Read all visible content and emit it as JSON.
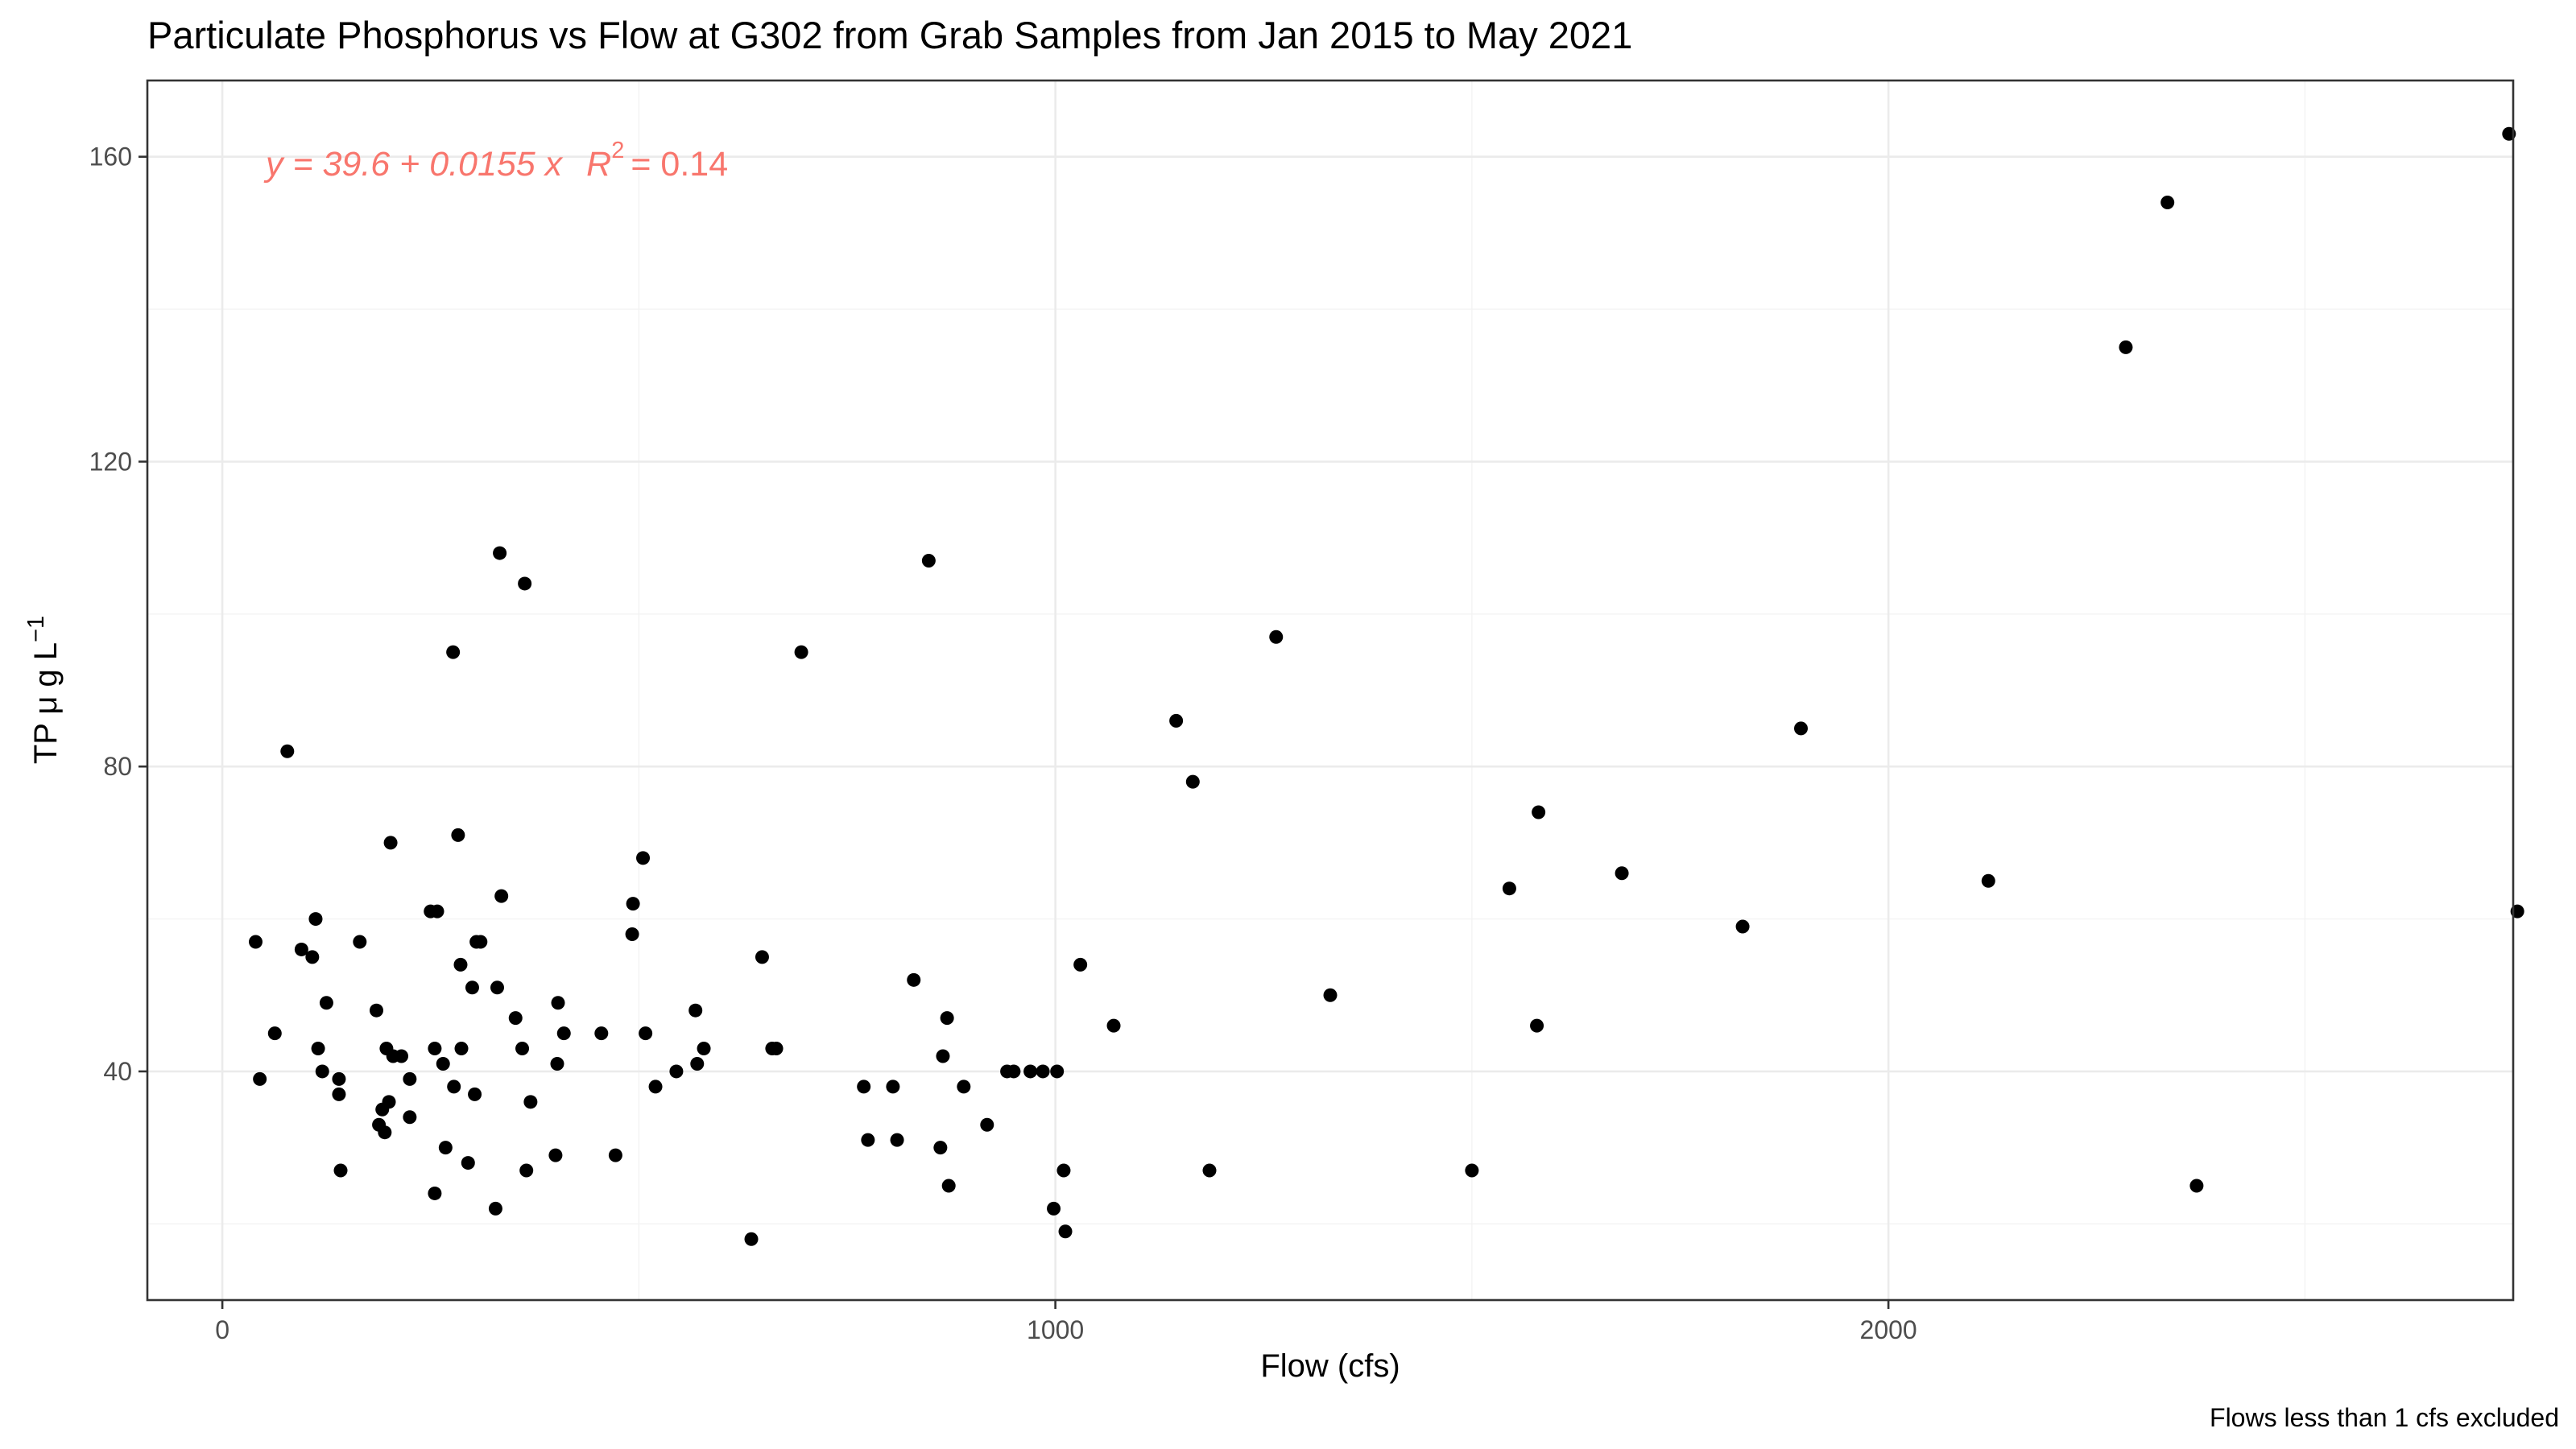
{
  "chart_data": {
    "type": "scatter",
    "title": "Particulate Phosphorus vs Flow at G302 from Grab Samples from Jan 2015 to May 2021",
    "xlabel": "Flow (cfs)",
    "ylabel": {
      "base": "TP μ g L",
      "sup": "−1"
    },
    "caption": "Flows less than 1 cfs excluded",
    "annotation": {
      "equation": "y = 39.6 + 0.0155 x",
      "r2_label": "R",
      "r2_sup": "2",
      "r2_value": "= 0.14",
      "color": "#F8766D"
    },
    "xlim": [
      -90,
      2750
    ],
    "ylim": [
      10,
      170
    ],
    "x_ticks": [
      0,
      1000,
      2000
    ],
    "x_tick_labels": [
      "0",
      "1000",
      "2000"
    ],
    "y_ticks": [
      40,
      80,
      120,
      160
    ],
    "y_tick_labels": [
      "40",
      "80",
      "120",
      "160"
    ],
    "grid": true,
    "point_color": "#000000",
    "points": [
      [
        40,
        57
      ],
      [
        45,
        39
      ],
      [
        63,
        45
      ],
      [
        78,
        82
      ],
      [
        95,
        56
      ],
      [
        108,
        55
      ],
      [
        112,
        60
      ],
      [
        115,
        43
      ],
      [
        120,
        40
      ],
      [
        125,
        49
      ],
      [
        140,
        39
      ],
      [
        140,
        37
      ],
      [
        142,
        27
      ],
      [
        165,
        57
      ],
      [
        185,
        48
      ],
      [
        188,
        33
      ],
      [
        192,
        35
      ],
      [
        195,
        32
      ],
      [
        197,
        43
      ],
      [
        200,
        36
      ],
      [
        202,
        70
      ],
      [
        205,
        42
      ],
      [
        215,
        42
      ],
      [
        225,
        34
      ],
      [
        225,
        39
      ],
      [
        250,
        61
      ],
      [
        255,
        43
      ],
      [
        255,
        24
      ],
      [
        258,
        61
      ],
      [
        265,
        41
      ],
      [
        268,
        30
      ],
      [
        277,
        95
      ],
      [
        278,
        38
      ],
      [
        283,
        71
      ],
      [
        286,
        54
      ],
      [
        287,
        43
      ],
      [
        295,
        28
      ],
      [
        300,
        51
      ],
      [
        303,
        37
      ],
      [
        305,
        57
      ],
      [
        310,
        57
      ],
      [
        328,
        22
      ],
      [
        330,
        51
      ],
      [
        333,
        108
      ],
      [
        335,
        63
      ],
      [
        352,
        47
      ],
      [
        360,
        43
      ],
      [
        363,
        104
      ],
      [
        365,
        27
      ],
      [
        370,
        36
      ],
      [
        400,
        29
      ],
      [
        402,
        41
      ],
      [
        403,
        49
      ],
      [
        410,
        45
      ],
      [
        455,
        45
      ],
      [
        472,
        29
      ],
      [
        492,
        58
      ],
      [
        493,
        62
      ],
      [
        505,
        68
      ],
      [
        508,
        45
      ],
      [
        520,
        38
      ],
      [
        545,
        40
      ],
      [
        568,
        48
      ],
      [
        570,
        41
      ],
      [
        578,
        43
      ],
      [
        635,
        18
      ],
      [
        648,
        55
      ],
      [
        660,
        43
      ],
      [
        665,
        43
      ],
      [
        695,
        95
      ],
      [
        770,
        38
      ],
      [
        775,
        31
      ],
      [
        805,
        38
      ],
      [
        810,
        31
      ],
      [
        830,
        52
      ],
      [
        848,
        107
      ],
      [
        862,
        30
      ],
      [
        865,
        42
      ],
      [
        870,
        47
      ],
      [
        872,
        25
      ],
      [
        890,
        38
      ],
      [
        918,
        33
      ],
      [
        942,
        40
      ],
      [
        950,
        40
      ],
      [
        970,
        40
      ],
      [
        985,
        40
      ],
      [
        998,
        22
      ],
      [
        1002,
        40
      ],
      [
        1010,
        27
      ],
      [
        1012,
        19
      ],
      [
        1030,
        54
      ],
      [
        1070,
        46
      ],
      [
        1145,
        86
      ],
      [
        1165,
        78
      ],
      [
        1185,
        27
      ],
      [
        1265,
        97
      ],
      [
        1330,
        50
      ],
      [
        1500,
        27
      ],
      [
        1545,
        64
      ],
      [
        1578,
        46
      ],
      [
        1580,
        74
      ],
      [
        1680,
        66
      ],
      [
        1825,
        59
      ],
      [
        1895,
        85
      ],
      [
        2120,
        65
      ],
      [
        2285,
        135
      ],
      [
        2335,
        154
      ],
      [
        2370,
        25
      ],
      [
        2745,
        163
      ],
      [
        2755,
        61
      ]
    ]
  }
}
